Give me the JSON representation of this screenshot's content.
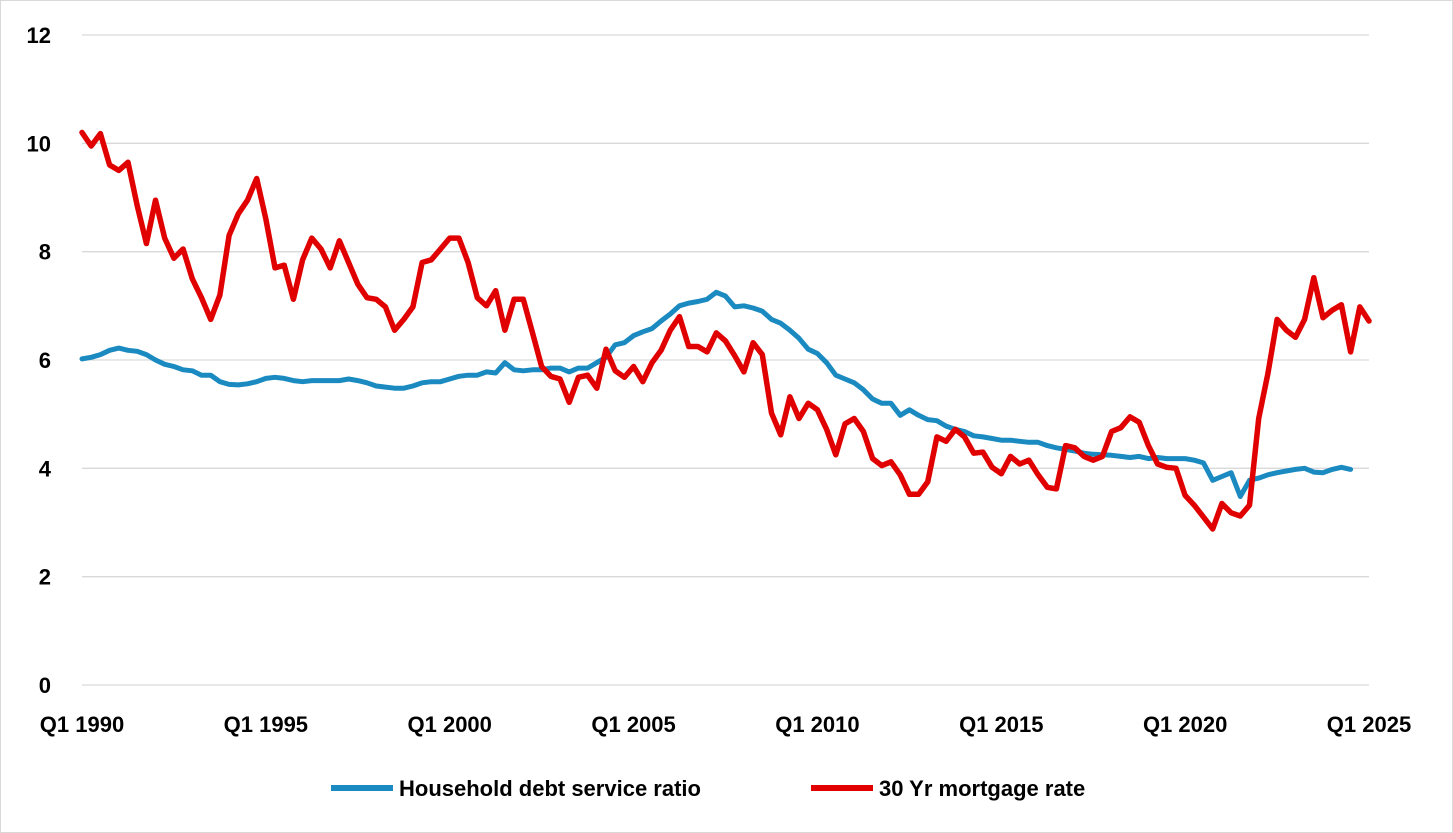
{
  "chart_data": {
    "type": "line",
    "title": "",
    "xlabel": "",
    "ylabel": "",
    "ylim": [
      0,
      12
    ],
    "y_ticks": [
      "0",
      "2",
      "4",
      "6",
      "8",
      "10",
      "12"
    ],
    "x_ticks": [
      "Q1 1990",
      "Q1 1995",
      "Q1 2000",
      "Q1 2005",
      "Q1 2010",
      "Q1 2015",
      "Q1 2020",
      "Q1 2025"
    ],
    "x_start": "Q1 1990",
    "x_end": "Q1 2025",
    "grid": "horizontal",
    "legend_position": "bottom",
    "series": [
      {
        "name": "Household debt service ratio",
        "color": "#1a8ac0",
        "values": [
          6.02,
          6.05,
          6.1,
          6.18,
          6.22,
          6.18,
          6.16,
          6.1,
          6.0,
          5.92,
          5.88,
          5.82,
          5.8,
          5.72,
          5.72,
          5.6,
          5.55,
          5.54,
          5.56,
          5.6,
          5.66,
          5.68,
          5.66,
          5.62,
          5.6,
          5.62,
          5.62,
          5.62,
          5.62,
          5.65,
          5.62,
          5.58,
          5.52,
          5.5,
          5.48,
          5.48,
          5.52,
          5.58,
          5.6,
          5.6,
          5.65,
          5.7,
          5.72,
          5.72,
          5.78,
          5.76,
          5.95,
          5.82,
          5.8,
          5.82,
          5.82,
          5.85,
          5.85,
          5.78,
          5.85,
          5.85,
          5.95,
          6.05,
          6.28,
          6.32,
          6.45,
          6.52,
          6.58,
          6.72,
          6.85,
          7.0,
          7.05,
          7.08,
          7.12,
          7.25,
          7.18,
          6.98,
          7.0,
          6.96,
          6.9,
          6.75,
          6.68,
          6.55,
          6.4,
          6.2,
          6.12,
          5.95,
          5.72,
          5.65,
          5.58,
          5.45,
          5.28,
          5.2,
          5.2,
          4.98,
          5.08,
          4.98,
          4.9,
          4.88,
          4.78,
          4.72,
          4.68,
          4.6,
          4.58,
          4.55,
          4.52,
          4.52,
          4.5,
          4.48,
          4.48,
          4.42,
          4.38,
          4.35,
          4.32,
          4.28,
          4.26,
          4.25,
          4.24,
          4.22,
          4.2,
          4.22,
          4.18,
          4.2,
          4.18,
          4.18,
          4.18,
          4.15,
          4.1,
          3.78,
          3.85,
          3.92,
          3.48,
          3.78,
          3.82,
          3.88,
          3.92,
          3.95,
          3.98,
          4.0,
          3.93,
          3.92,
          3.98,
          4.02,
          3.98
        ]
      },
      {
        "name": "30 Yr mortgage rate",
        "color": "#e00000",
        "values": [
          10.2,
          9.95,
          10.18,
          9.6,
          9.5,
          9.65,
          8.85,
          8.15,
          8.95,
          8.25,
          7.88,
          8.05,
          7.5,
          7.15,
          6.75,
          7.2,
          8.3,
          8.7,
          8.95,
          9.35,
          8.6,
          7.7,
          7.75,
          7.12,
          7.85,
          8.25,
          8.05,
          7.7,
          8.2,
          7.8,
          7.4,
          7.15,
          7.12,
          6.98,
          6.55,
          6.75,
          6.98,
          7.8,
          7.85,
          8.05,
          8.25,
          8.25,
          7.8,
          7.15,
          7.0,
          7.28,
          6.55,
          7.12,
          7.12,
          6.5,
          5.88,
          5.7,
          5.65,
          5.22,
          5.68,
          5.72,
          5.48,
          6.2,
          5.8,
          5.68,
          5.88,
          5.6,
          5.95,
          6.18,
          6.55,
          6.8,
          6.25,
          6.25,
          6.15,
          6.5,
          6.35,
          6.08,
          5.78,
          6.32,
          6.1,
          5.02,
          4.62,
          5.32,
          4.92,
          5.2,
          5.08,
          4.72,
          4.25,
          4.82,
          4.92,
          4.68,
          4.18,
          4.05,
          4.12,
          3.88,
          3.52,
          3.52,
          3.75,
          4.58,
          4.5,
          4.72,
          4.58,
          4.28,
          4.3,
          4.02,
          3.9,
          4.22,
          4.08,
          4.15,
          3.88,
          3.65,
          3.62,
          4.42,
          4.38,
          4.22,
          4.15,
          4.22,
          4.68,
          4.75,
          4.95,
          4.85,
          4.42,
          4.08,
          4.02,
          4.0,
          3.5,
          3.32,
          3.1,
          2.88,
          3.35,
          3.18,
          3.12,
          3.32,
          4.92,
          5.75,
          6.75,
          6.55,
          6.42,
          6.75,
          7.52,
          6.78,
          6.92,
          7.02,
          6.15,
          6.98,
          6.72
        ]
      }
    ]
  }
}
